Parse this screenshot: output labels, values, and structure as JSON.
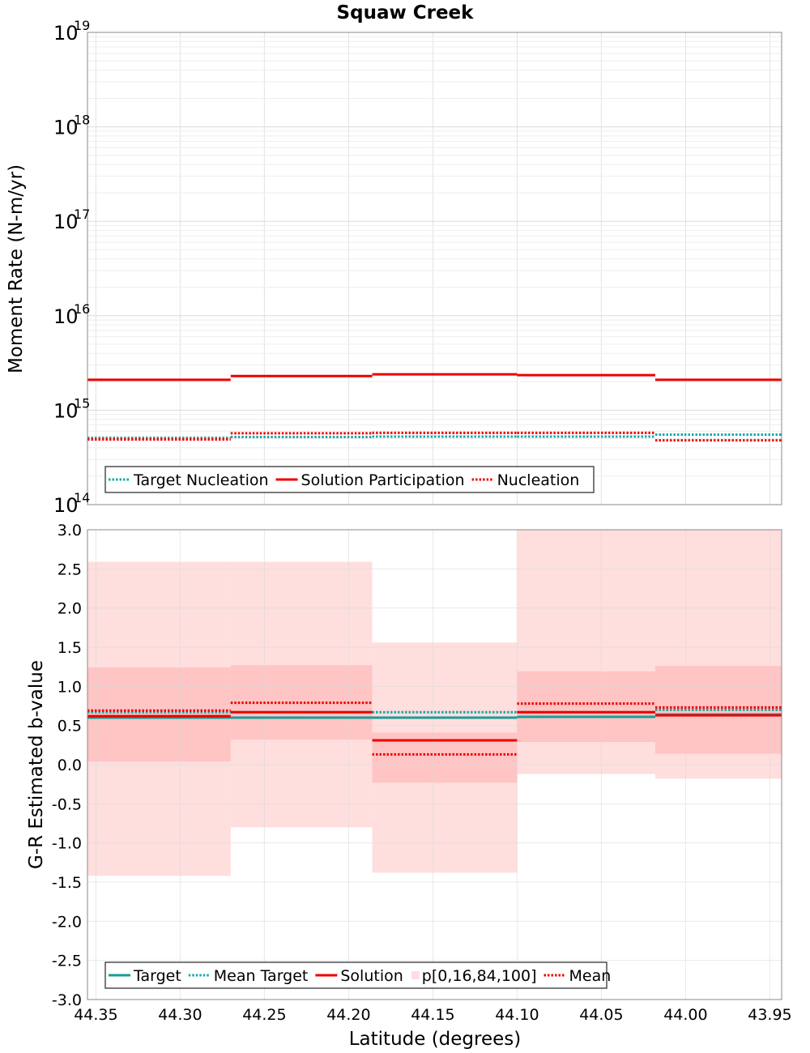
{
  "title": "Squaw Creek",
  "xlabel": "Latitude (degrees)",
  "x_ticks": [
    "44.35",
    "44.30",
    "44.25",
    "44.20",
    "44.15",
    "44.10",
    "44.05",
    "44.00",
    "43.95"
  ],
  "chart_data": [
    {
      "type": "line",
      "title": "Squaw Creek",
      "ylabel": "Moment Rate (N-m/yr)",
      "y_scale": "log",
      "ylim": [
        100000000000000.0,
        1e+19
      ],
      "xlim": [
        44.355,
        43.943
      ],
      "x_reversed": true,
      "grid": true,
      "legend_position": "bottom-left",
      "y_ticks": [
        {
          "base": "10",
          "exp": "14"
        },
        {
          "base": "10",
          "exp": "15"
        },
        {
          "base": "10",
          "exp": "16"
        },
        {
          "base": "10",
          "exp": "17"
        },
        {
          "base": "10",
          "exp": "18"
        },
        {
          "base": "10",
          "exp": "19"
        }
      ],
      "bin_edges": [
        44.355,
        44.27,
        44.186,
        44.1,
        44.018,
        43.943
      ],
      "series": [
        {
          "name": "Target Nucleation",
          "color": "#17a8a8",
          "style": "dotted",
          "values": [
            510000000000000.0,
            520000000000000.0,
            525000000000000.0,
            525000000000000.0,
            525000000000000.0,
            550000000000000.0
          ]
        },
        {
          "name": "Solution Participation",
          "color": "#ee0000",
          "style": "solid",
          "values": [
            2100000000000000.0,
            2300000000000000.0,
            2400000000000000.0,
            2350000000000000.0,
            2100000000000000.0
          ]
        },
        {
          "name": "Nucleation",
          "color": "#ee0000",
          "style": "dotted",
          "values": [
            490000000000000.0,
            570000000000000.0,
            575000000000000.0,
            575000000000000.0,
            480000000000000.0
          ]
        }
      ]
    },
    {
      "type": "line",
      "ylabel": "G-R Estimated b-value",
      "ylim": [
        -3.0,
        3.0
      ],
      "xlim": [
        44.355,
        43.943
      ],
      "x_reversed": true,
      "grid": true,
      "legend_position": "bottom-left",
      "y_ticks": [
        "3.0",
        "2.5",
        "2.0",
        "1.5",
        "1.0",
        "0.5",
        "0.0",
        "-0.5",
        "-1.0",
        "-1.5",
        "-2.0",
        "-2.5",
        "-3.0"
      ],
      "bin_edges": [
        44.355,
        44.27,
        44.186,
        44.1,
        44.018,
        43.943
      ],
      "band_outer": {
        "low": [
          -1.42,
          -0.8,
          -1.38,
          -0.12,
          -0.18
        ],
        "high": [
          2.59,
          2.59,
          1.56,
          3.0,
          3.0
        ]
      },
      "band_inner": {
        "low": [
          0.04,
          0.32,
          -0.23,
          0.29,
          0.14
        ],
        "high": [
          1.24,
          1.27,
          0.41,
          1.19,
          1.26
        ]
      },
      "series": [
        {
          "name": "Target",
          "color": "#159e96",
          "style": "solid",
          "values": [
            0.6,
            0.6,
            0.6,
            0.61,
            0.64
          ]
        },
        {
          "name": "Mean Target",
          "color": "#17a8a8",
          "style": "dotted",
          "values": [
            0.67,
            0.67,
            0.67,
            0.67,
            0.7
          ]
        },
        {
          "name": "Solution",
          "color": "#ee0000",
          "style": "solid",
          "values": [
            0.62,
            0.67,
            0.31,
            0.67,
            0.63
          ]
        },
        {
          "name": "p[0,16,84,100]",
          "color": "#ffc8c8",
          "style": "band"
        },
        {
          "name": "Mean",
          "color": "#ee0000",
          "style": "dotted",
          "values": [
            0.69,
            0.79,
            0.13,
            0.78,
            0.73
          ]
        }
      ]
    }
  ]
}
